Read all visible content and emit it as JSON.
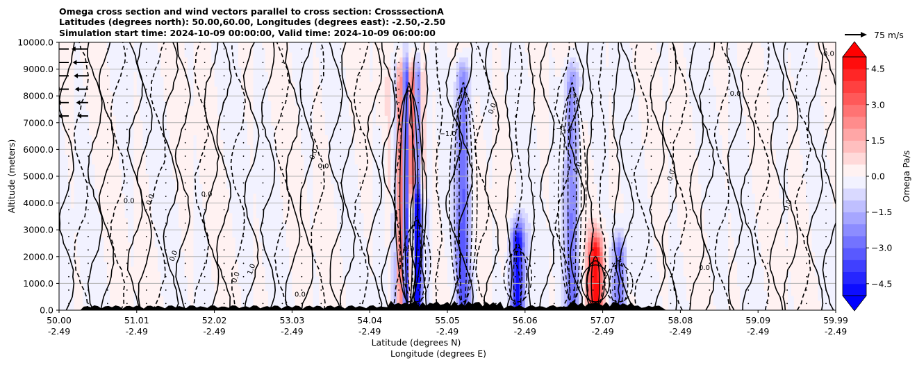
{
  "chart_data": {
    "type": "heatmap",
    "title_lines": [
      "Omega cross section and wind vectors parallel to cross section: CrosssectionA",
      "Latitudes (degrees north): 50.00,60.00, Longitudes (degrees east): -2.50,-2.50",
      "Simulation start time: 2024-10-09 00:00:00, Valid time: 2024-10-09 06:00:00"
    ],
    "xlabel": "Latitude (degrees N)",
    "xlabel2": "Longitude (degrees E)",
    "ylabel": "Altitude (meters)",
    "x_ticks": [
      {
        "lat": "50.00",
        "lon": "-2.49"
      },
      {
        "lat": "51.01",
        "lon": "-2.49"
      },
      {
        "lat": "52.02",
        "lon": "-2.49"
      },
      {
        "lat": "53.03",
        "lon": "-2.49"
      },
      {
        "lat": "54.04",
        "lon": "-2.49"
      },
      {
        "lat": "55.05",
        "lon": "-2.49"
      },
      {
        "lat": "56.06",
        "lon": "-2.49"
      },
      {
        "lat": "57.07",
        "lon": "-2.49"
      },
      {
        "lat": "58.08",
        "lon": "-2.49"
      },
      {
        "lat": "59.09",
        "lon": "-2.49"
      },
      {
        "lat": "59.99",
        "lon": "-2.49"
      }
    ],
    "x_range": [
      50.0,
      59.99
    ],
    "y_ticks": [
      "0.0",
      "1000.0",
      "2000.0",
      "3000.0",
      "4000.0",
      "5000.0",
      "6000.0",
      "7000.0",
      "8000.0",
      "9000.0",
      "10000.0"
    ],
    "y_range": [
      0,
      10000
    ],
    "grid": "horizontal",
    "colorbar": {
      "label": "Omega Pa/s",
      "ticks": [
        "4.5",
        "3.0",
        "1.5",
        "0.0",
        "−1.5",
        "−3.0",
        "−4.5"
      ],
      "range": [
        -5,
        5
      ],
      "levels": 20,
      "extend": "both",
      "min_color": "#0000ff",
      "mid_color": "#ffffff",
      "max_color": "#ff0000"
    },
    "quiver_key": {
      "label": "75 m/s"
    },
    "contour_labels": [
      "0.0",
      "0.0",
      "0.0",
      "0.0",
      "0.0",
      "0.0",
      "0.0",
      "1.0",
      "−1.0",
      "0.0",
      "0.0",
      "0.0",
      "−1.0",
      "0.0",
      "0.0",
      "0.0",
      "0.0",
      "0.0",
      "0.0"
    ],
    "features": [
      {
        "lat": 54.5,
        "alt_top": 8500,
        "sign": "mixed",
        "peak": 4.0
      },
      {
        "lat": 54.6,
        "alt_top": 3500,
        "sign": "negative",
        "peak": -5.0
      },
      {
        "lat": 55.2,
        "alt_top": 8500,
        "sign": "negative",
        "peak": -3.0
      },
      {
        "lat": 55.9,
        "alt_top": 2500,
        "sign": "negative",
        "peak": -5.0
      },
      {
        "lat": 56.9,
        "alt_top": 2000,
        "sign": "positive",
        "peak": 5.0
      },
      {
        "lat": 57.2,
        "alt_top": 2000,
        "sign": "negative",
        "peak": -3.0
      },
      {
        "lat": 56.6,
        "alt_top": 8500,
        "sign": "negative",
        "peak": -2.5
      }
    ]
  }
}
